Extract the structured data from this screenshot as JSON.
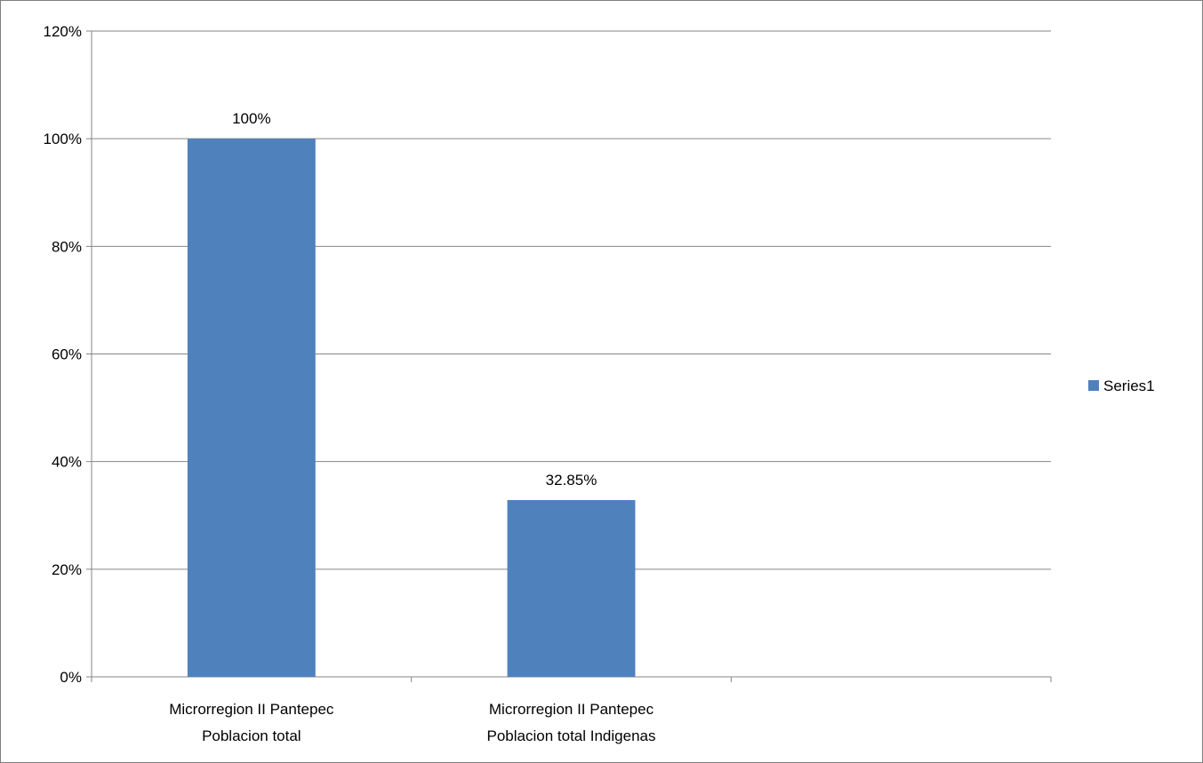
{
  "chart_data": {
    "type": "bar",
    "categories": [
      [
        "Microrregion II Pantepec",
        "Poblacion total"
      ],
      [
        "Microrregion II Pantepec",
        "Poblacion total Indigenas"
      ],
      [
        "",
        ""
      ]
    ],
    "series": [
      {
        "name": "Series1",
        "values": [
          100,
          32.85,
          null
        ],
        "data_labels": [
          "100%",
          "32.85%",
          ""
        ]
      }
    ],
    "yticks": [
      "0%",
      "20%",
      "40%",
      "60%",
      "80%",
      "100%",
      "120%"
    ],
    "ylim": [
      0,
      120
    ],
    "grid": true,
    "legend": "right",
    "colors": {
      "bar": "#4f81bd",
      "grid": "#868686",
      "axis": "#868686",
      "frame": "#7f7f7f"
    }
  }
}
